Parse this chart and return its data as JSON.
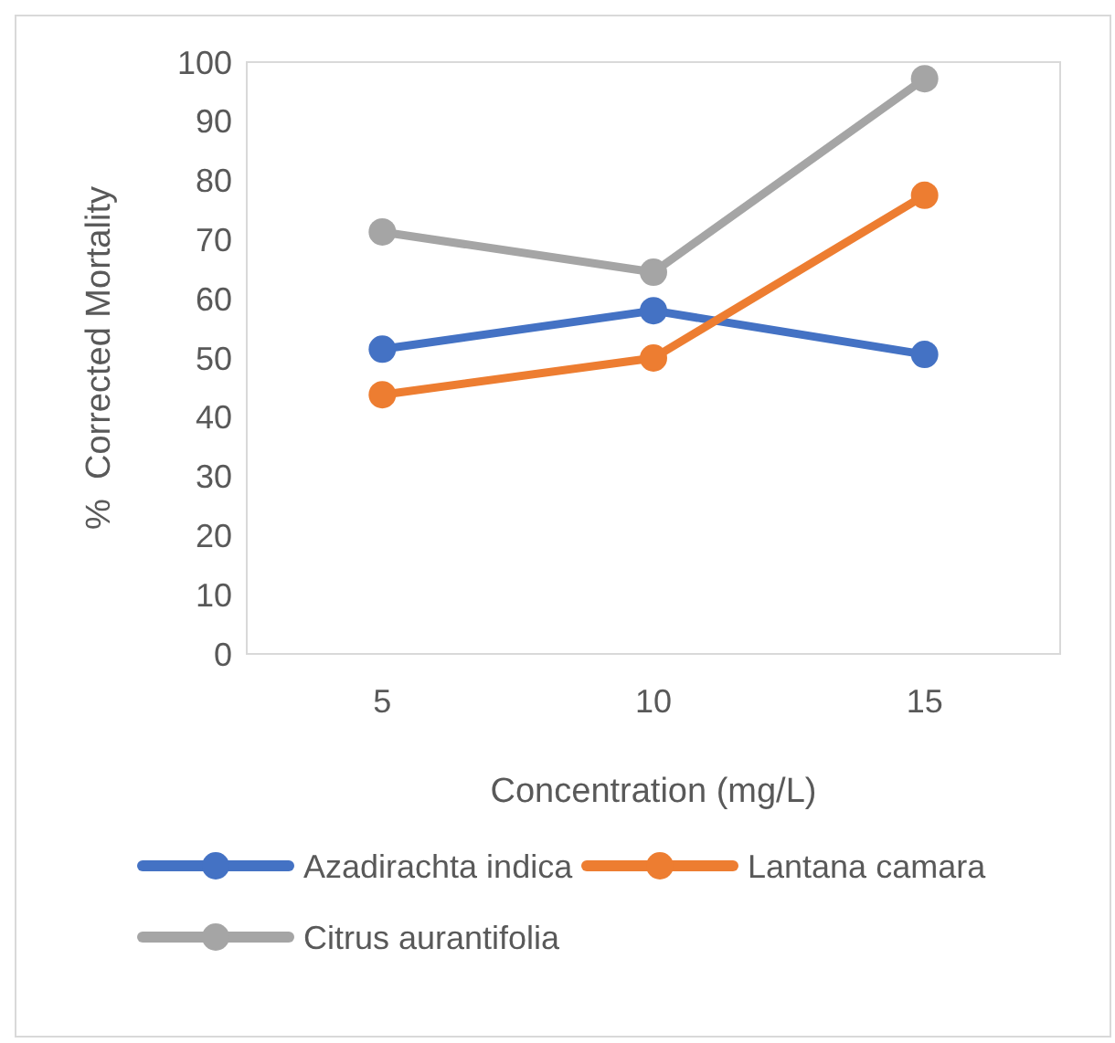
{
  "chart_data": {
    "type": "line",
    "xlabel": "Concentration (mg/L)",
    "ylabel": "%  Corrected Mortality",
    "categories": [
      "5",
      "10",
      "15"
    ],
    "ylim": [
      0,
      100
    ],
    "yticks": [
      0,
      10,
      20,
      30,
      40,
      50,
      60,
      70,
      80,
      90,
      100
    ],
    "grid": false,
    "legend": "bottom",
    "marker": "circle",
    "line_style": "solid",
    "series": [
      {
        "name": "Azadirachta indica",
        "color": "#4472c4",
        "values": [
          51.5,
          58,
          50.6
        ]
      },
      {
        "name": "Lantana camara",
        "color": "#ed7d31",
        "values": [
          43.8,
          50,
          77.5
        ]
      },
      {
        "name": "Citrus aurantifolia",
        "color": "#a5a5a5",
        "values": [
          71.3,
          64.5,
          97.2
        ]
      }
    ]
  }
}
